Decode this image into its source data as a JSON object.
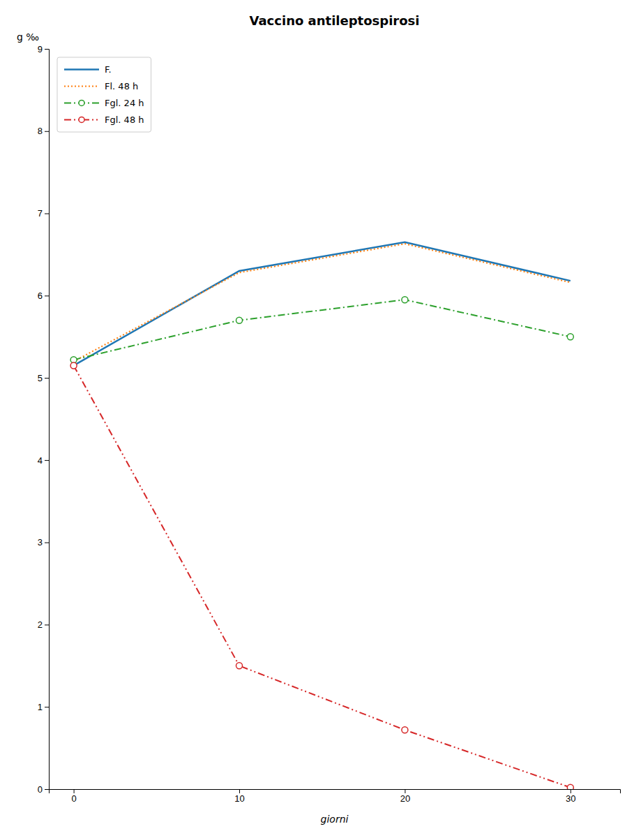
{
  "chart_data": {
    "type": "line",
    "title": "Vaccino antileptospirosi",
    "x_label": "giorni",
    "y_label": "g ‰",
    "x": [
      0,
      10,
      20,
      30
    ],
    "series": [
      {
        "name": "F.",
        "values": [
          5.15,
          6.3,
          6.65,
          6.18
        ],
        "line_style": "solid"
      },
      {
        "name": "Fl. 48 h",
        "values": [
          5.2,
          6.28,
          6.63,
          6.16
        ],
        "line_style": "dotted"
      },
      {
        "name": "Fgl. 24 h",
        "values": [
          5.22,
          5.7,
          5.95,
          5.5
        ],
        "line_style": "dashdot",
        "marker": "circle"
      },
      {
        "name": "Fgl. 48 h",
        "values": [
          5.15,
          1.5,
          0.72,
          0.02
        ],
        "line_style": "dashdotdot",
        "marker": "circle"
      }
    ],
    "xlim": [
      -1.5,
      33
    ],
    "ylim": [
      0,
      9
    ],
    "xticks": [
      0,
      10,
      20,
      30
    ],
    "yticks": [
      0,
      1,
      2,
      3,
      4,
      5,
      6,
      7,
      8,
      9
    ],
    "grid": false,
    "legend": "upper left"
  }
}
